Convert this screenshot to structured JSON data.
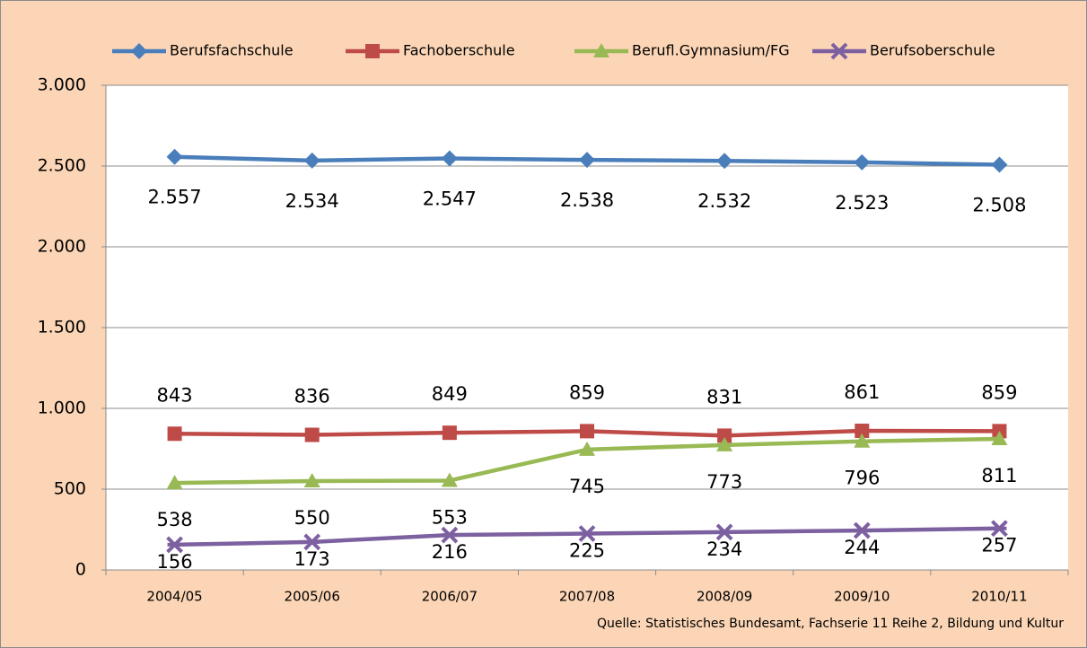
{
  "chart_data": {
    "type": "line",
    "categories": [
      "2004/05",
      "2005/06",
      "2006/07",
      "2007/08",
      "2008/09",
      "2009/10",
      "2010/11"
    ],
    "series": [
      {
        "name": "Berufsfachschule",
        "color": "#4a7ebb",
        "marker": "diamond",
        "values": [
          2557,
          2534,
          2547,
          2538,
          2532,
          2523,
          2508
        ],
        "value_labels": [
          "2.557",
          "2.534",
          "2.547",
          "2.538",
          "2.532",
          "2.523",
          "2.508"
        ]
      },
      {
        "name": "Fachoberschule",
        "color": "#be4b48",
        "marker": "square",
        "values": [
          843,
          836,
          849,
          859,
          831,
          861,
          859
        ]
      },
      {
        "name": "Berufl.Gymnasium/FG",
        "color": "#98b954",
        "marker": "triangle",
        "values": [
          538,
          550,
          553,
          745,
          773,
          796,
          811
        ]
      },
      {
        "name": "Berufsoberschule",
        "color": "#7d60a0",
        "marker": "star",
        "values": [
          156,
          173,
          216,
          225,
          234,
          244,
          257
        ]
      }
    ],
    "ylim": [
      0,
      3000
    ],
    "yticks": [
      0,
      500,
      {
        "value": 1000,
        "label": "1.000"
      },
      {
        "value": 1500,
        "label": "1.500"
      },
      {
        "value": 2000,
        "label": "2.000"
      },
      {
        "value": 2500,
        "label": "2.500"
      },
      {
        "value": 3000,
        "label": "3.000"
      }
    ],
    "grid": true,
    "legend": "top",
    "source": "Quelle: Statistisches Bundesamt, Fachserie 11 Reihe 2, Bildung und Kultur"
  }
}
